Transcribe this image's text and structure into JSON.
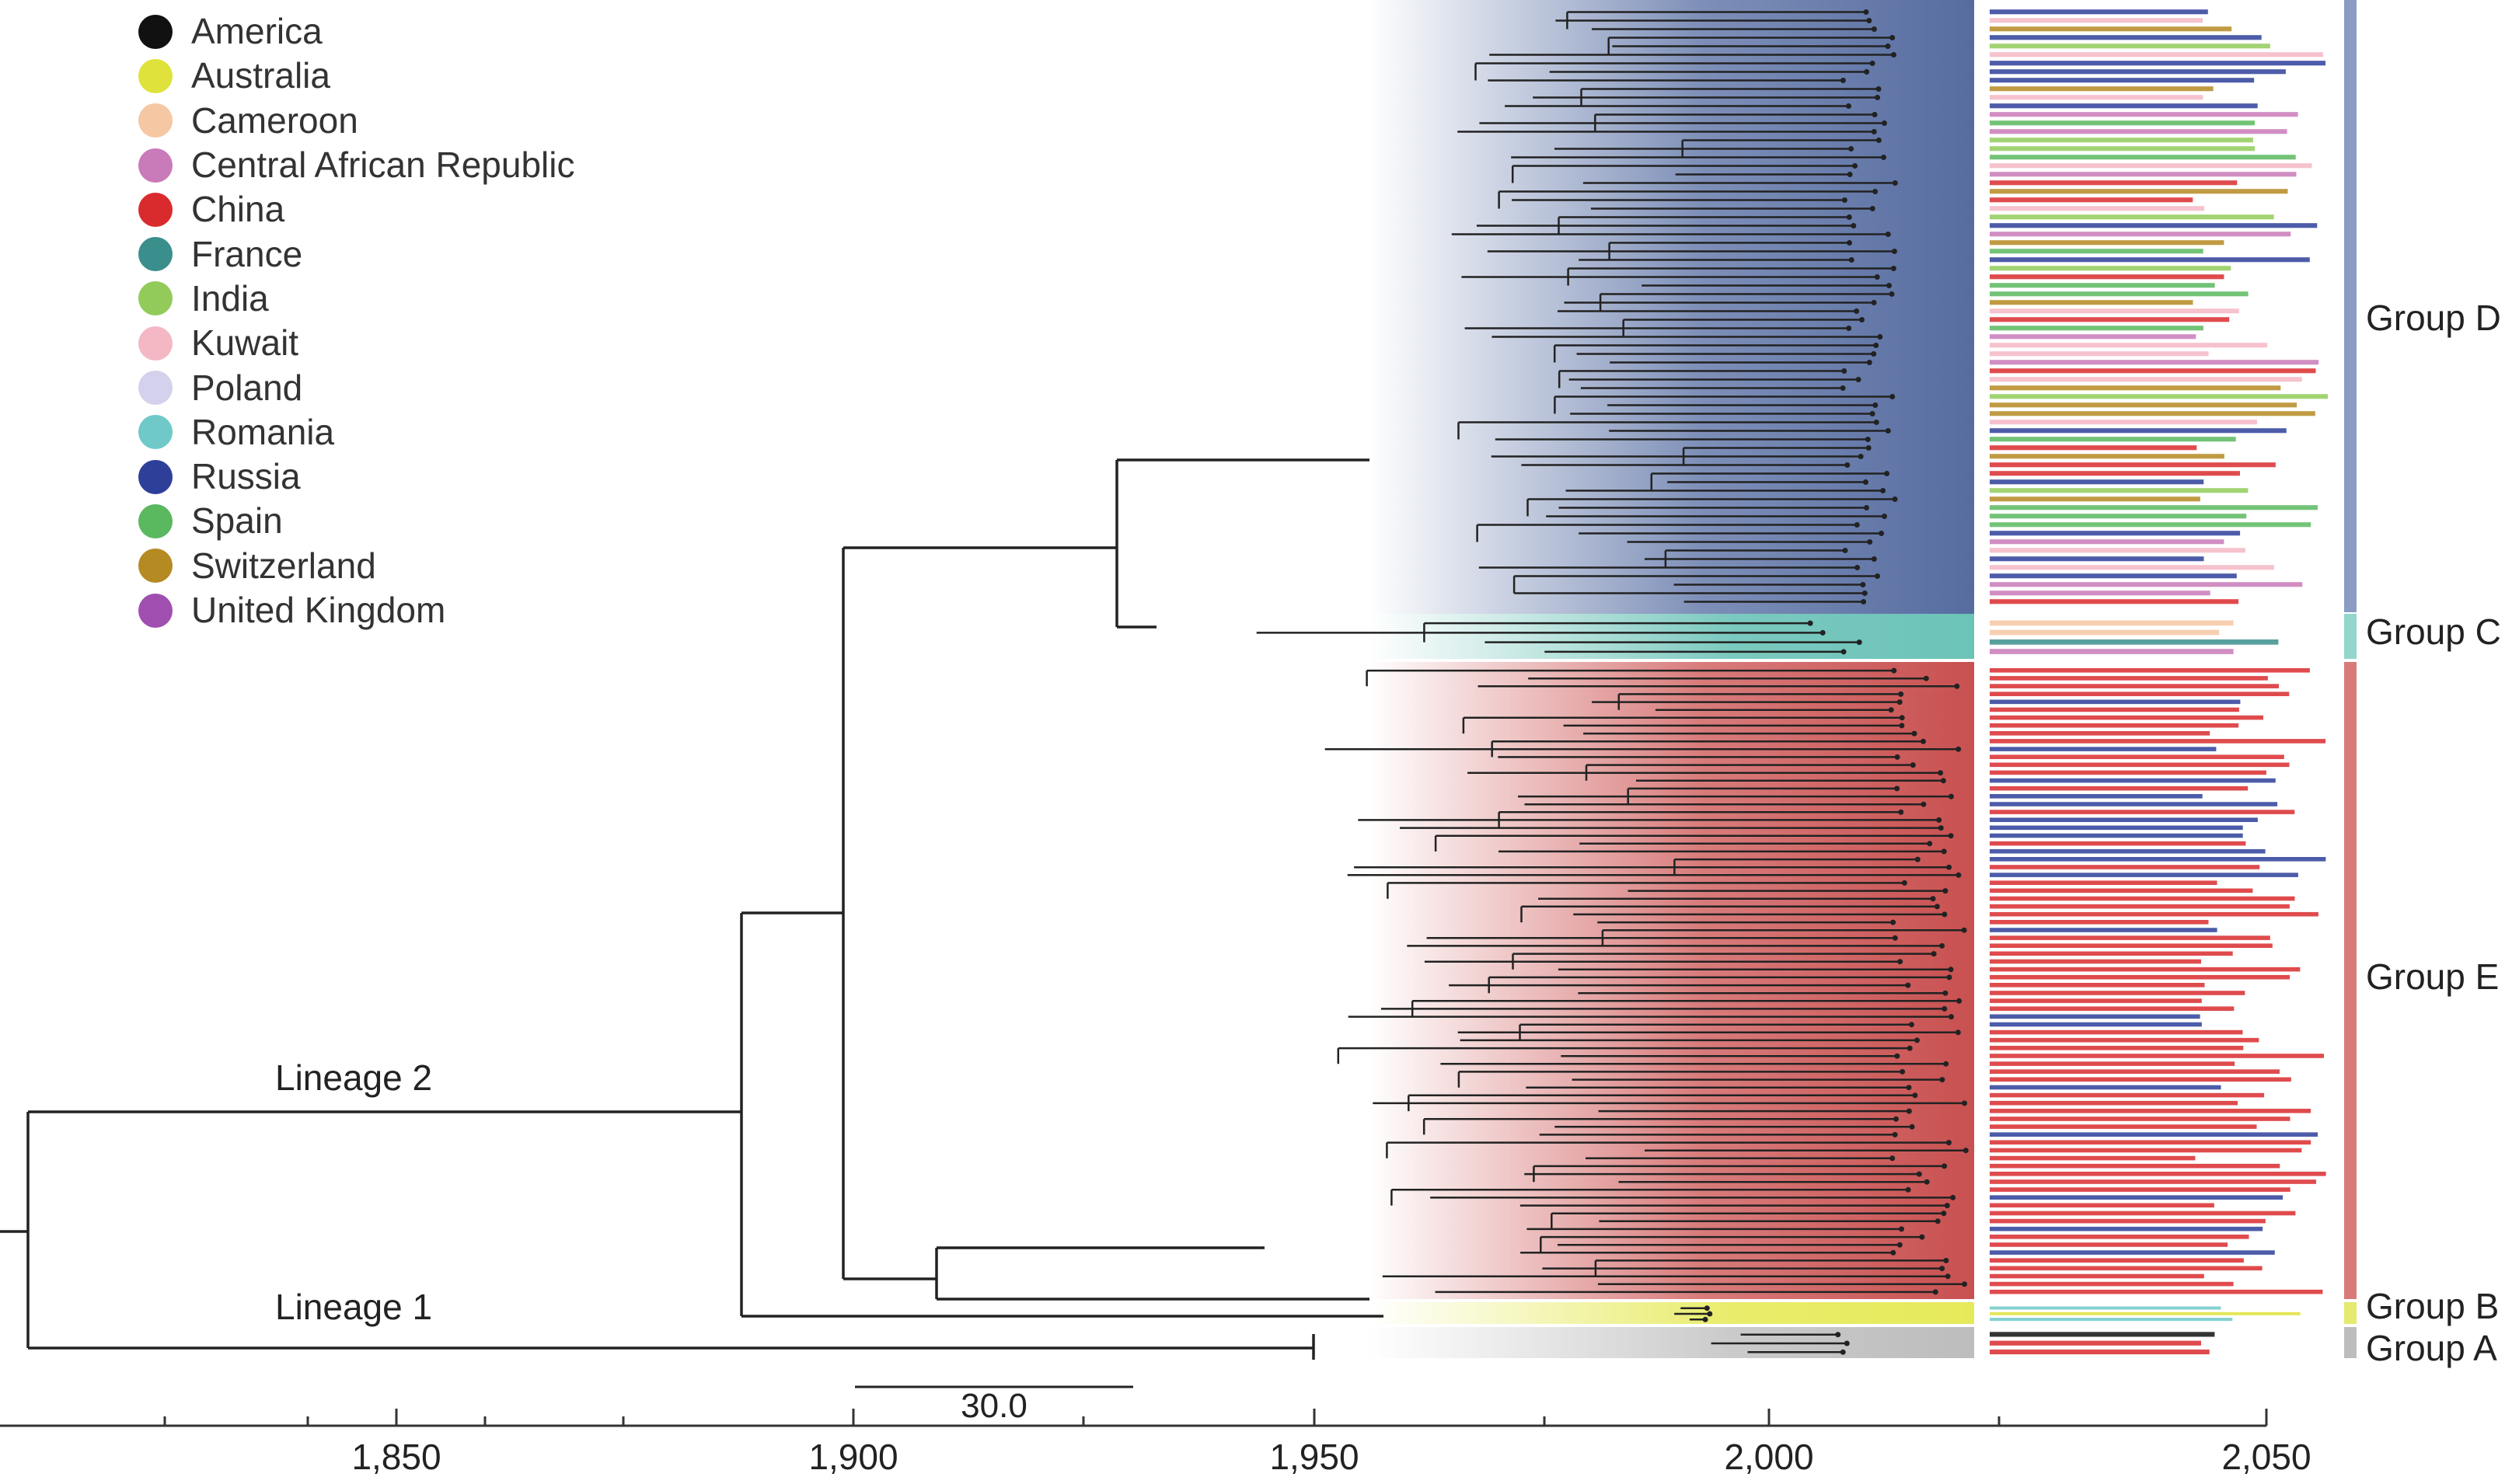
{
  "legend": [
    {
      "label": "America",
      "color": "#111111"
    },
    {
      "label": "Australia",
      "color": "#dfe23a"
    },
    {
      "label": "Cameroon",
      "color": "#f6c7a3"
    },
    {
      "label": "Central African Republic",
      "color": "#c97ab9"
    },
    {
      "label": "China",
      "color": "#d92b2e"
    },
    {
      "label": "France",
      "color": "#3a8f8c"
    },
    {
      "label": "India",
      "color": "#92cb5a"
    },
    {
      "label": "Kuwait",
      "color": "#f4b7c4"
    },
    {
      "label": "Poland",
      "color": "#d3d1ec"
    },
    {
      "label": "Romania",
      "color": "#6fc9c9"
    },
    {
      "label": "Russia",
      "color": "#2e3f9a"
    },
    {
      "label": "Spain",
      "color": "#5ab85f"
    },
    {
      "label": "Switzerland",
      "color": "#b58a22"
    },
    {
      "label": "United Kingdom",
      "color": "#a04fb0"
    }
  ],
  "lineages": {
    "lineage2": "Lineage 2",
    "lineage1": "Lineage 1"
  },
  "groups": [
    {
      "label": "Group D",
      "color": "#8a9cc4"
    },
    {
      "label": "Group C",
      "color": "#93d6cc"
    },
    {
      "label": "Group E",
      "color": "#d97a7a"
    },
    {
      "label": "Group B",
      "color": "#e6ea6e"
    },
    {
      "label": "Group A",
      "color": "#bdbdbd"
    }
  ],
  "time_axis": {
    "ticks": [
      "1,850",
      "1,900",
      "1,950",
      "2,000",
      "2,050"
    ]
  },
  "scale_bar": {
    "label": "30.0"
  }
}
